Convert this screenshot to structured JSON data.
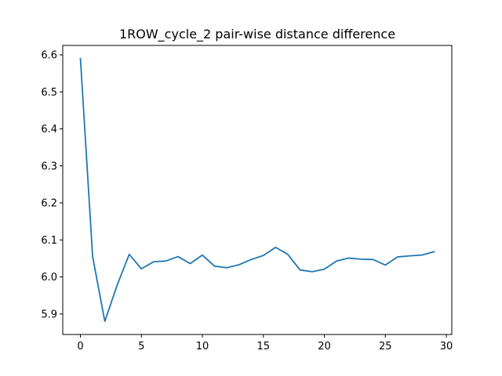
{
  "chart_data": {
    "type": "line",
    "title": "1ROW_cycle_2 pair-wise distance difference",
    "xlabel": "",
    "ylabel": "",
    "xlim": [
      -1.45,
      30.45
    ],
    "ylim": [
      5.8445,
      6.6255
    ],
    "xticks": [
      0,
      5,
      10,
      15,
      20,
      25,
      30
    ],
    "xtick_labels": [
      "0",
      "5",
      "10",
      "15",
      "20",
      "25",
      "30"
    ],
    "yticks": [
      5.9,
      6.0,
      6.1,
      6.2,
      6.3,
      6.4,
      6.5,
      6.6
    ],
    "ytick_labels": [
      "5.9",
      "6.0",
      "6.1",
      "6.2",
      "6.3",
      "6.4",
      "6.5",
      "6.6"
    ],
    "grid": false,
    "series": [
      {
        "color": "#1f77b4",
        "x": [
          0,
          1,
          2,
          3,
          4,
          5,
          6,
          7,
          8,
          9,
          10,
          11,
          12,
          13,
          14,
          15,
          16,
          17,
          18,
          19,
          20,
          21,
          22,
          23,
          24,
          25,
          26,
          27,
          28,
          29
        ],
        "y": [
          6.59,
          6.055,
          5.88,
          5.977,
          6.061,
          6.022,
          6.041,
          6.043,
          6.055,
          6.036,
          6.059,
          6.029,
          6.025,
          6.033,
          6.047,
          6.058,
          6.08,
          6.061,
          6.019,
          6.014,
          6.021,
          6.043,
          6.051,
          6.048,
          6.047,
          6.032,
          6.054,
          6.057,
          6.059,
          6.068
        ]
      }
    ]
  }
}
